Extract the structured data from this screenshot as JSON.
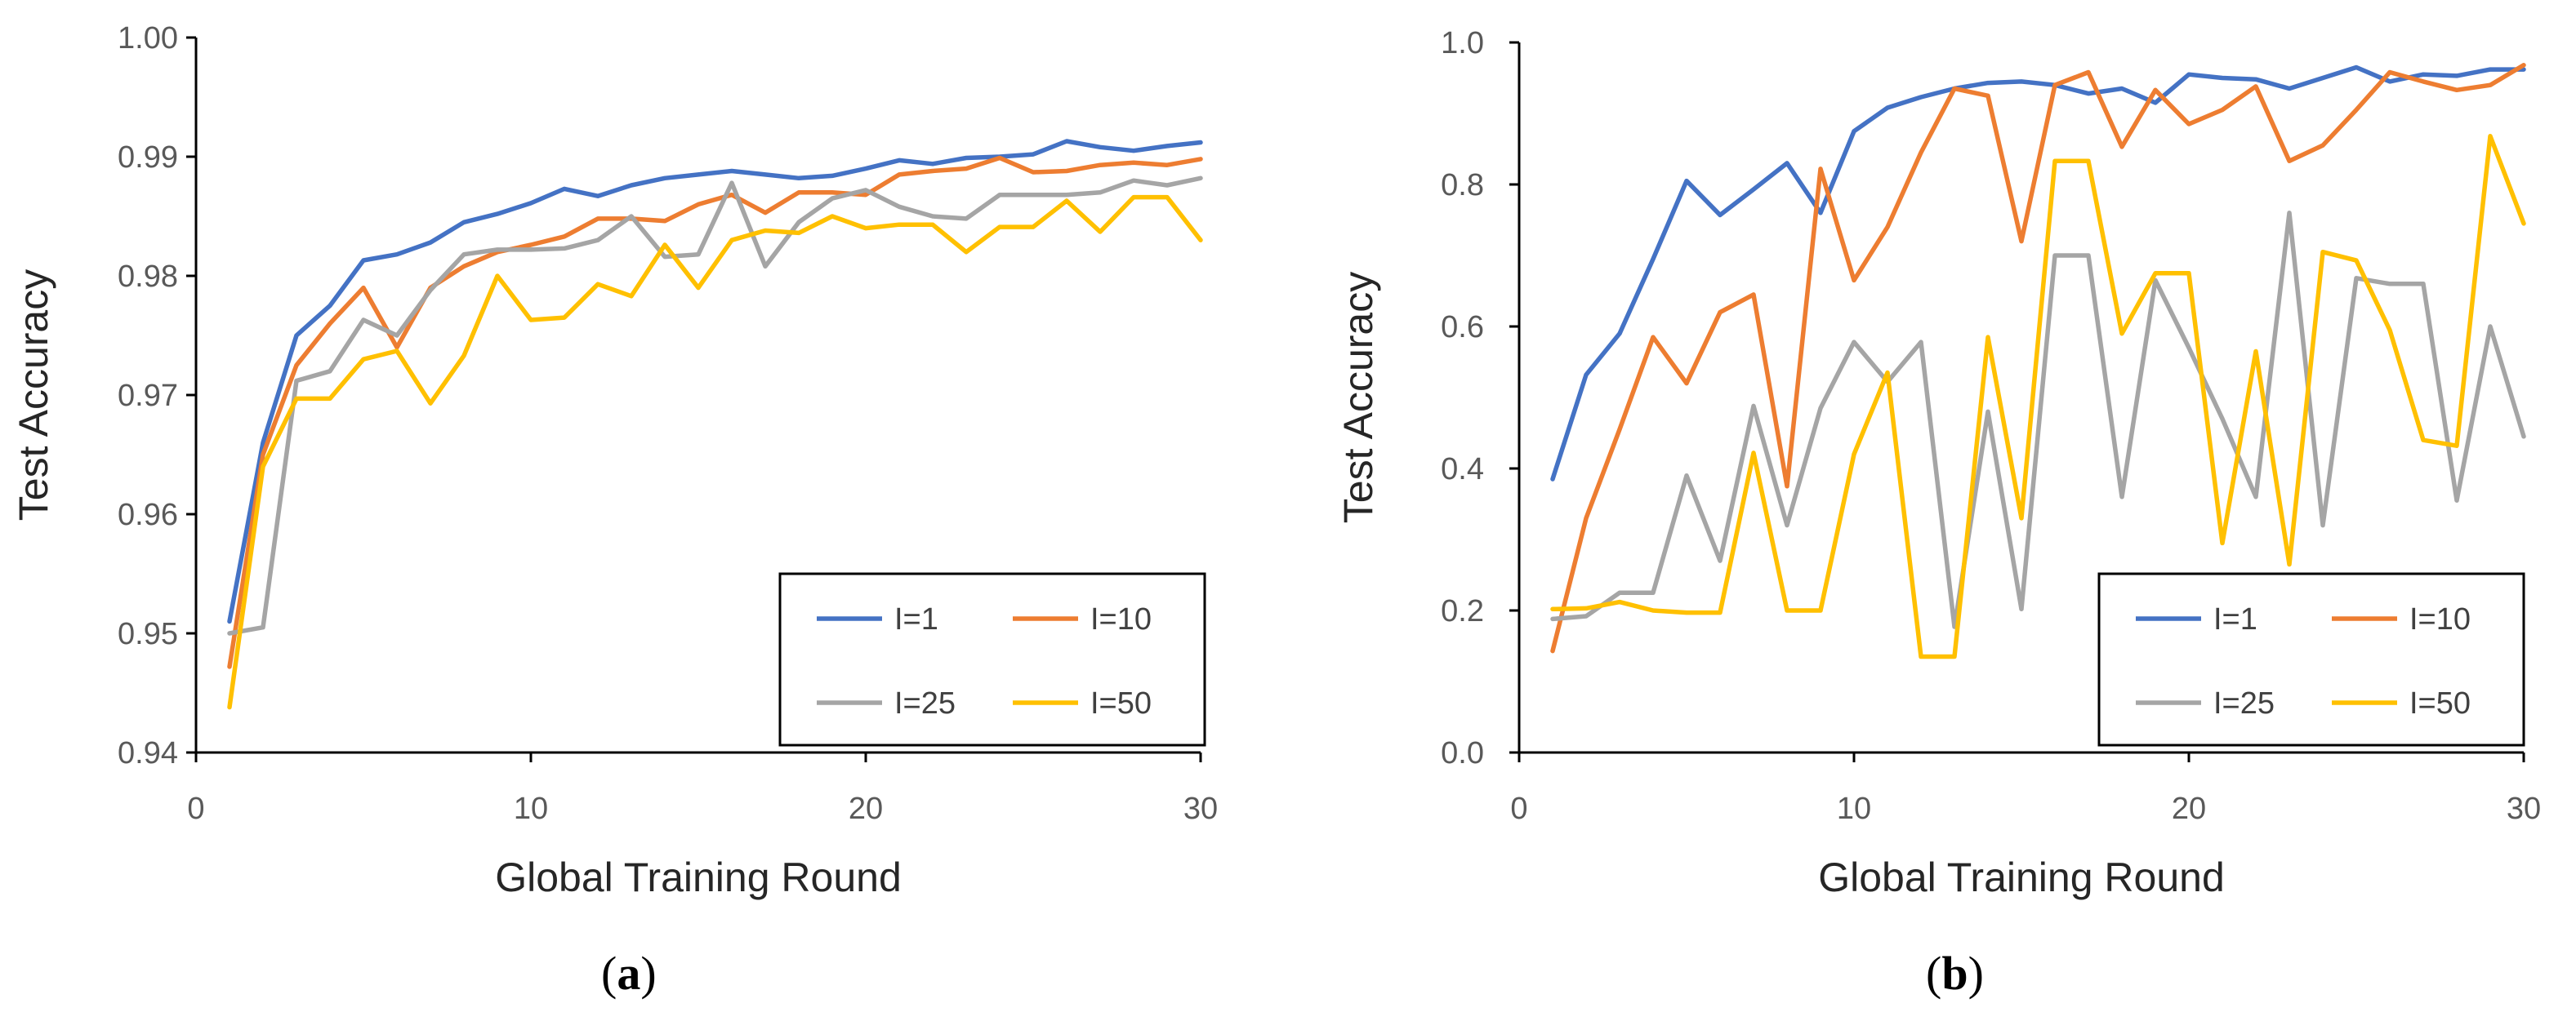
{
  "chart_data": [
    {
      "type": "line",
      "panel_label_open": "(",
      "panel_label_letter": "a",
      "panel_label_close": ")",
      "xlabel": "Global Training Round",
      "ylabel": "Test Accuracy",
      "xlim": [
        0,
        30
      ],
      "ylim": [
        0.94,
        1.0
      ],
      "xticks": [
        0,
        10,
        20,
        30
      ],
      "xtick_labels": [
        "0",
        "10",
        "20",
        "30"
      ],
      "yticks": [
        0.94,
        0.95,
        0.96,
        0.97,
        0.98,
        0.99,
        1.0
      ],
      "ytick_labels": [
        "0.94",
        "0.95",
        "0.96",
        "0.97",
        "0.98",
        "0.99",
        "1.00"
      ],
      "grid": false,
      "legend_position": "bottom-right",
      "x": [
        1,
        2,
        3,
        4,
        5,
        6,
        7,
        8,
        9,
        10,
        11,
        12,
        13,
        14,
        15,
        16,
        17,
        18,
        19,
        20,
        21,
        22,
        23,
        24,
        25,
        26,
        27,
        28,
        29,
        30
      ],
      "series": [
        {
          "name": "I=1",
          "color": "#4472C4",
          "values": [
            0.951,
            0.966,
            0.975,
            0.9775,
            0.9813,
            0.9818,
            0.9828,
            0.9845,
            0.9852,
            0.9861,
            0.9873,
            0.9867,
            0.9876,
            0.9882,
            0.9885,
            0.9888,
            0.9885,
            0.9882,
            0.9884,
            0.989,
            0.9897,
            0.9894,
            0.9899,
            0.99,
            0.9902,
            0.9913,
            0.9908,
            0.9905,
            0.9909,
            0.9912
          ]
        },
        {
          "name": "I=10",
          "color": "#ED7D31",
          "values": [
            0.9472,
            0.965,
            0.9725,
            0.976,
            0.979,
            0.974,
            0.979,
            0.9808,
            0.982,
            0.9826,
            0.9833,
            0.9848,
            0.9848,
            0.9846,
            0.986,
            0.9868,
            0.9853,
            0.987,
            0.987,
            0.9868,
            0.9885,
            0.9888,
            0.989,
            0.9899,
            0.9887,
            0.9888,
            0.9893,
            0.9895,
            0.9893,
            0.9898
          ]
        },
        {
          "name": "I=25",
          "color": "#A5A5A5",
          "values": [
            0.95,
            0.9505,
            0.9712,
            0.972,
            0.9763,
            0.975,
            0.9788,
            0.9818,
            0.9822,
            0.9822,
            0.9823,
            0.983,
            0.985,
            0.9816,
            0.9818,
            0.9878,
            0.9808,
            0.9845,
            0.9865,
            0.9872,
            0.9858,
            0.985,
            0.9848,
            0.9868,
            0.9868,
            0.9868,
            0.987,
            0.988,
            0.9876,
            0.9882
          ]
        },
        {
          "name": "I=50",
          "color": "#FFC000",
          "values": [
            0.9438,
            0.964,
            0.9697,
            0.9697,
            0.973,
            0.9737,
            0.9693,
            0.9733,
            0.98,
            0.9763,
            0.9765,
            0.9793,
            0.9783,
            0.9826,
            0.979,
            0.983,
            0.9838,
            0.9836,
            0.985,
            0.984,
            0.9843,
            0.9843,
            0.982,
            0.9841,
            0.9841,
            0.9863,
            0.9837,
            0.9866,
            0.9866,
            0.983
          ]
        }
      ]
    },
    {
      "type": "line",
      "panel_label_open": "(",
      "panel_label_letter": "b",
      "panel_label_close": ")",
      "xlabel": "Global Training Round",
      "ylabel": "Test Accuracy",
      "xlim": [
        0,
        30
      ],
      "ylim": [
        0.0,
        1.0
      ],
      "xticks": [
        0,
        10,
        20,
        30
      ],
      "xtick_labels": [
        "0",
        "10",
        "20",
        "30"
      ],
      "yticks": [
        0.0,
        0.2,
        0.4,
        0.6,
        0.8,
        1.0
      ],
      "ytick_labels": [
        "0.0",
        "0.2",
        "0.4",
        "0.6",
        "0.8",
        "1.0"
      ],
      "grid": false,
      "legend_position": "bottom-right",
      "x": [
        1,
        2,
        3,
        4,
        5,
        6,
        7,
        8,
        9,
        10,
        11,
        12,
        13,
        14,
        15,
        16,
        17,
        18,
        19,
        20,
        21,
        22,
        23,
        24,
        25,
        26,
        27,
        28,
        29,
        30
      ],
      "series": [
        {
          "name": "I=1",
          "color": "#4472C4",
          "values": [
            0.385,
            0.532,
            0.59,
            0.695,
            0.805,
            0.757,
            0.793,
            0.83,
            0.76,
            0.875,
            0.908,
            0.923,
            0.935,
            0.943,
            0.945,
            0.94,
            0.928,
            0.935,
            0.915,
            0.955,
            0.95,
            0.948,
            0.935,
            0.95,
            0.965,
            0.945,
            0.955,
            0.953,
            0.962,
            0.962
          ]
        },
        {
          "name": "I=10",
          "color": "#ED7D31",
          "values": [
            0.143,
            0.33,
            0.455,
            0.585,
            0.52,
            0.62,
            0.645,
            0.375,
            0.822,
            0.665,
            0.74,
            0.845,
            0.935,
            0.925,
            0.72,
            0.94,
            0.958,
            0.853,
            0.933,
            0.885,
            0.905,
            0.938,
            0.833,
            0.855,
            0.905,
            0.958,
            0.945,
            0.933,
            0.94,
            0.968
          ]
        },
        {
          "name": "I=25",
          "color": "#A5A5A5",
          "values": [
            0.188,
            0.192,
            0.225,
            0.225,
            0.39,
            0.27,
            0.488,
            0.32,
            0.485,
            0.578,
            0.522,
            0.578,
            0.177,
            0.48,
            0.202,
            0.7,
            0.7,
            0.36,
            0.665,
            0.57,
            0.47,
            0.36,
            0.76,
            0.32,
            0.668,
            0.66,
            0.66,
            0.355,
            0.6,
            0.445
          ]
        },
        {
          "name": "I=50",
          "color": "#FFC000",
          "values": [
            0.202,
            0.203,
            0.212,
            0.2,
            0.197,
            0.197,
            0.422,
            0.2,
            0.2,
            0.42,
            0.535,
            0.135,
            0.135,
            0.585,
            0.33,
            0.833,
            0.833,
            0.59,
            0.675,
            0.675,
            0.295,
            0.565,
            0.265,
            0.705,
            0.693,
            0.595,
            0.44,
            0.432,
            0.868,
            0.745
          ]
        }
      ]
    }
  ]
}
